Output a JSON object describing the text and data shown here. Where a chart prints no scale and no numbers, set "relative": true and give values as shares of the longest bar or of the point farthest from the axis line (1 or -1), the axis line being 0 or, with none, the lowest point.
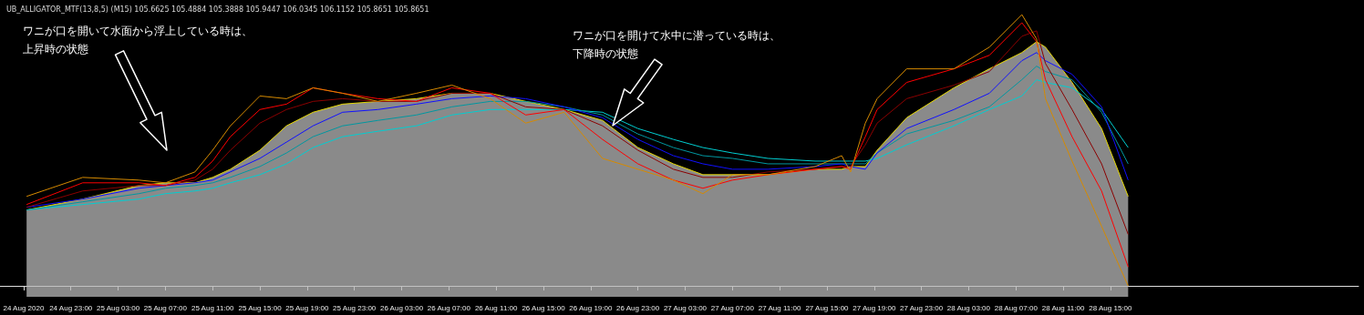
{
  "chart_data": {
    "type": "line",
    "title": "UB_ALLIGATOR_MTF(13,8,5) (M15) 105.6625 105.4884 105.3888 105.9447 106.0345 106.1152 105.8651 105.8651",
    "relative": true,
    "marker": "none",
    "annotations": [
      "ワニが口を開いて水面から浮上している時は、上昇時の状態",
      "ワニが口を開けて水中に潜っている時は、下降時の状態"
    ],
    "xlim": [
      "2020-08-24T17:00",
      "2020-08-29T12:00"
    ],
    "xticks": [
      {
        "value": "2020-08-24T19:00",
        "label": "24 Aug 2020"
      },
      {
        "value": "2020-08-24T23:00",
        "label": "24 Aug 23:00"
      },
      {
        "value": "2020-08-25T03:00",
        "label": "25 Aug 03:00"
      },
      {
        "value": "2020-08-25T07:00",
        "label": "25 Aug 07:00"
      },
      {
        "value": "2020-08-25T11:00",
        "label": "25 Aug 11:00"
      },
      {
        "value": "2020-08-25T15:00",
        "label": "25 Aug 15:00"
      },
      {
        "value": "2020-08-25T19:00",
        "label": "25 Aug 19:00"
      },
      {
        "value": "2020-08-25T23:00",
        "label": "25 Aug 23:00"
      },
      {
        "value": "2020-08-26T03:00",
        "label": "26 Aug 03:00"
      },
      {
        "value": "2020-08-26T07:00",
        "label": "26 Aug 07:00"
      },
      {
        "value": "2020-08-26T11:00",
        "label": "26 Aug 11:00"
      },
      {
        "value": "2020-08-26T15:00",
        "label": "26 Aug 15:00"
      },
      {
        "value": "2020-08-26T19:00",
        "label": "26 Aug 19:00"
      },
      {
        "value": "2020-08-26T23:00",
        "label": "26 Aug 23:00"
      },
      {
        "value": "2020-08-27T03:00",
        "label": "27 Aug 03:00"
      },
      {
        "value": "2020-08-27T07:00",
        "label": "27 Aug 07:00"
      },
      {
        "value": "2020-08-27T11:00",
        "label": "27 Aug 11:00"
      },
      {
        "value": "2020-08-27T15:00",
        "label": "27 Aug 15:00"
      },
      {
        "value": "2020-08-27T19:00",
        "label": "27 Aug 19:00"
      },
      {
        "value": "2020-08-27T23:00",
        "label": "27 Aug 23:00"
      },
      {
        "value": "2020-08-28T03:00",
        "label": "28 Aug 03:00"
      },
      {
        "value": "2020-08-28T07:00",
        "label": "28 Aug 07:00"
      },
      {
        "value": "2020-08-28T11:00",
        "label": "28 Aug 11:00"
      },
      {
        "value": "2020-08-28T15:00",
        "label": "28 Aug 15:00"
      }
    ],
    "x": [
      "2020-08-24T19:15",
      "2020-08-25T00:00",
      "2020-08-25T04:45",
      "2020-08-25T07:00",
      "2020-08-25T09:30",
      "2020-08-25T11:00",
      "2020-08-25T12:30",
      "2020-08-25T15:00",
      "2020-08-25T17:15",
      "2020-08-25T19:30",
      "2020-08-25T22:00",
      "2020-08-26T01:00",
      "2020-08-26T04:15",
      "2020-08-26T07:15",
      "2020-08-26T10:30",
      "2020-08-26T13:30",
      "2020-08-26T16:45",
      "2020-08-26T20:00",
      "2020-08-26T23:00",
      "2020-08-27T02:00",
      "2020-08-27T04:30",
      "2020-08-27T07:00",
      "2020-08-27T10:00",
      "2020-08-27T14:00",
      "2020-08-27T16:15",
      "2020-08-27T17:00",
      "2020-08-27T18:15",
      "2020-08-27T19:15",
      "2020-08-27T21:45",
      "2020-08-28T01:45",
      "2020-08-28T04:45",
      "2020-08-28T07:30",
      "2020-08-28T08:45",
      "2020-08-28T09:30",
      "2020-08-28T11:45",
      "2020-08-28T14:15",
      "2020-08-28T16:30"
    ],
    "series": [
      {
        "type": "area",
        "color": "#e6d800",
        "values": [
          0.28,
          0.32,
          0.37,
          0.38,
          0.38,
          0.4,
          0.43,
          0.5,
          0.59,
          0.64,
          0.67,
          0.68,
          0.69,
          0.71,
          0.71,
          0.68,
          0.65,
          0.61,
          0.51,
          0.45,
          0.41,
          0.41,
          0.41,
          0.43,
          0.43,
          0.44,
          0.44,
          0.5,
          0.62,
          0.73,
          0.8,
          0.86,
          0.9,
          0.88,
          0.75,
          0.58,
          0.33
        ]
      },
      {
        "color": "#00ced1",
        "values": [
          0.28,
          0.3,
          0.32,
          0.34,
          0.35,
          0.36,
          0.38,
          0.41,
          0.45,
          0.51,
          0.55,
          0.57,
          0.59,
          0.63,
          0.65,
          0.65,
          0.65,
          0.64,
          0.58,
          0.54,
          0.51,
          0.49,
          0.47,
          0.46,
          0.46,
          0.46,
          0.46,
          0.47,
          0.52,
          0.59,
          0.65,
          0.7,
          0.76,
          0.75,
          0.73,
          0.65,
          0.51
        ]
      },
      {
        "color": "#0097a0",
        "values": [
          0.28,
          0.31,
          0.34,
          0.36,
          0.37,
          0.38,
          0.4,
          0.44,
          0.49,
          0.55,
          0.59,
          0.61,
          0.63,
          0.66,
          0.68,
          0.68,
          0.66,
          0.63,
          0.56,
          0.51,
          0.48,
          0.47,
          0.45,
          0.45,
          0.45,
          0.45,
          0.45,
          0.49,
          0.56,
          0.61,
          0.66,
          0.76,
          0.81,
          0.79,
          0.76,
          0.64,
          0.45
        ]
      },
      {
        "color": "#1010ff",
        "values": [
          0.29,
          0.32,
          0.36,
          0.37,
          0.38,
          0.39,
          0.42,
          0.47,
          0.53,
          0.59,
          0.64,
          0.65,
          0.67,
          0.69,
          0.7,
          0.69,
          0.66,
          0.62,
          0.54,
          0.48,
          0.45,
          0.43,
          0.43,
          0.44,
          0.45,
          0.44,
          0.43,
          0.49,
          0.58,
          0.65,
          0.71,
          0.83,
          0.86,
          0.83,
          0.78,
          0.66,
          0.39
        ]
      },
      {
        "color": "#8b0000",
        "values": [
          0.29,
          0.35,
          0.37,
          0.37,
          0.39,
          0.43,
          0.5,
          0.6,
          0.65,
          0.68,
          0.69,
          0.68,
          0.68,
          0.71,
          0.71,
          0.66,
          0.65,
          0.59,
          0.5,
          0.43,
          0.4,
          0.4,
          0.42,
          0.43,
          0.44,
          0.44,
          0.52,
          0.6,
          0.69,
          0.74,
          0.79,
          0.92,
          0.94,
          0.82,
          0.65,
          0.45,
          0.19
        ]
      },
      {
        "color": "#ff0000",
        "values": [
          0.3,
          0.38,
          0.38,
          0.37,
          0.4,
          0.46,
          0.55,
          0.65,
          0.67,
          0.73,
          0.71,
          0.69,
          0.68,
          0.73,
          0.71,
          0.63,
          0.65,
          0.54,
          0.45,
          0.39,
          0.36,
          0.39,
          0.41,
          0.43,
          0.44,
          0.43,
          0.55,
          0.65,
          0.75,
          0.8,
          0.85,
          0.97,
          0.9,
          0.76,
          0.55,
          0.35,
          0.07
        ]
      },
      {
        "color": "#d68a00",
        "values": [
          0.33,
          0.4,
          0.39,
          0.38,
          0.42,
          0.5,
          0.59,
          0.7,
          0.69,
          0.73,
          0.71,
          0.68,
          0.71,
          0.74,
          0.69,
          0.6,
          0.64,
          0.47,
          0.43,
          0.39,
          0.34,
          0.41,
          0.41,
          0.44,
          0.48,
          0.42,
          0.6,
          0.69,
          0.8,
          0.8,
          0.88,
          1.0,
          0.91,
          0.69,
          0.46,
          0.22,
          0
        ]
      }
    ]
  }
}
